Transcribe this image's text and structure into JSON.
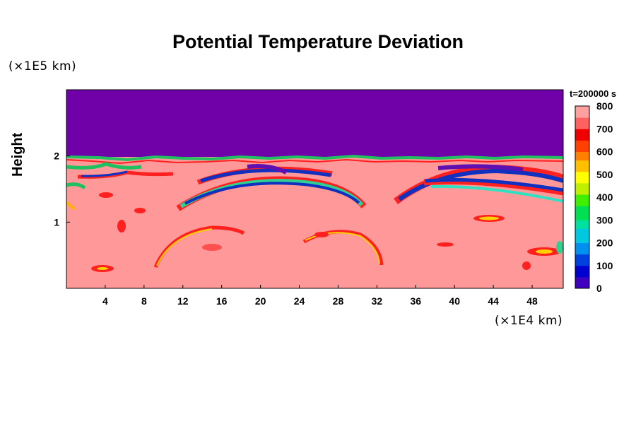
{
  "chart_data": {
    "type": "heatmap",
    "title": "Potential Temperature Deviation",
    "ylabel": "Height",
    "y_unit": "(×1E5 km)",
    "x_unit": "(×1E4 km)",
    "time_label": "t=200000 s",
    "x_ticks": [
      4,
      8,
      12,
      16,
      20,
      24,
      28,
      32,
      36,
      40,
      44,
      48
    ],
    "y_ticks": [
      1,
      2
    ],
    "xlim": [
      0,
      51.2
    ],
    "ylim": [
      0,
      3.0
    ],
    "colorbar": {
      "ticks": [
        0,
        100,
        200,
        300,
        400,
        500,
        600,
        700,
        800
      ],
      "range": [
        0,
        800
      ]
    },
    "regions": [
      {
        "name": "upper layer",
        "value": 0
      },
      {
        "name": "lower layer",
        "value": 800
      }
    ]
  }
}
